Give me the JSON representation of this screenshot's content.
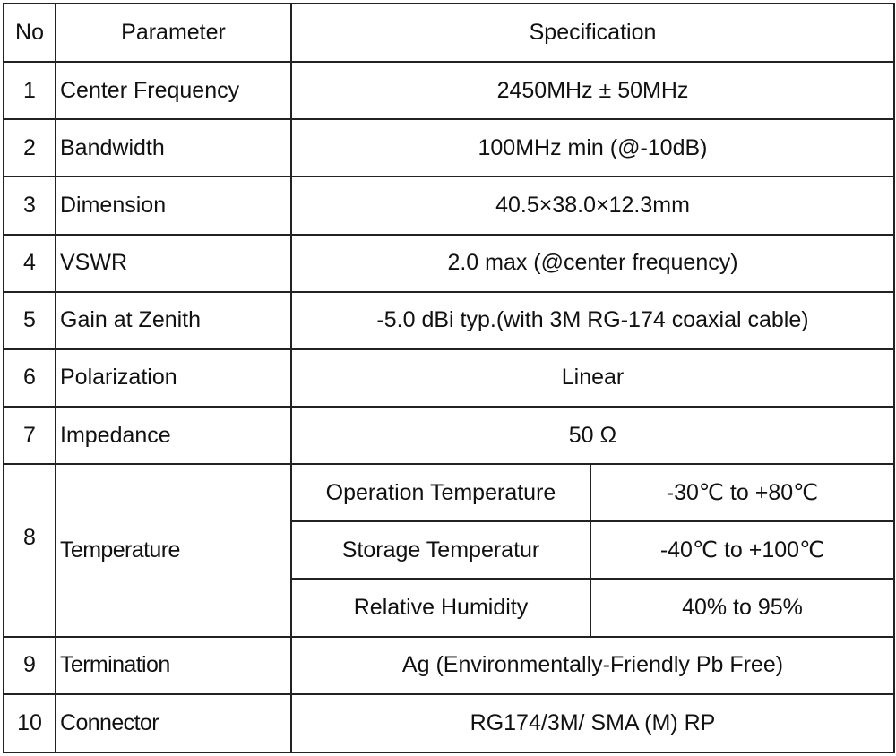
{
  "header": {
    "no": "No",
    "parameter": "Parameter",
    "specification": "Specification"
  },
  "rows": [
    {
      "no": "1",
      "parameter": "Center Frequency",
      "spec": "2450MHz ± 50MHz"
    },
    {
      "no": "2",
      "parameter": "Bandwidth",
      "spec": "100MHz min (@-10dB)"
    },
    {
      "no": "3",
      "parameter": "Dimension",
      "spec": "40.5×38.0×12.3mm"
    },
    {
      "no": "4",
      "parameter": "VSWR",
      "spec": "2.0 max (@center frequency)"
    },
    {
      "no": "5",
      "parameter": "Gain at Zenith",
      "spec": "-5.0 dBi typ.(with 3M RG-174 coaxial cable)"
    },
    {
      "no": "6",
      "parameter": "Polarization",
      "spec": "Linear"
    },
    {
      "no": "7",
      "parameter": "Impedance",
      "spec": "50 Ω"
    }
  ],
  "temperature": {
    "no": "8",
    "parameter": "Temperature",
    "sub": [
      {
        "label": "Operation Temperature",
        "value": "-30℃  to +80℃"
      },
      {
        "label": "Storage Temperatur",
        "value": "-40℃  to +100℃"
      },
      {
        "label": "Relative Humidity",
        "value": "40% to 95%"
      }
    ]
  },
  "tail": [
    {
      "no": "9",
      "parameter": "Termination",
      "spec": "Ag (Environmentally-Friendly Pb Free)"
    },
    {
      "no": "10",
      "parameter": "Connector",
      "spec": "RG174/3M/ SMA (M) RP"
    }
  ]
}
